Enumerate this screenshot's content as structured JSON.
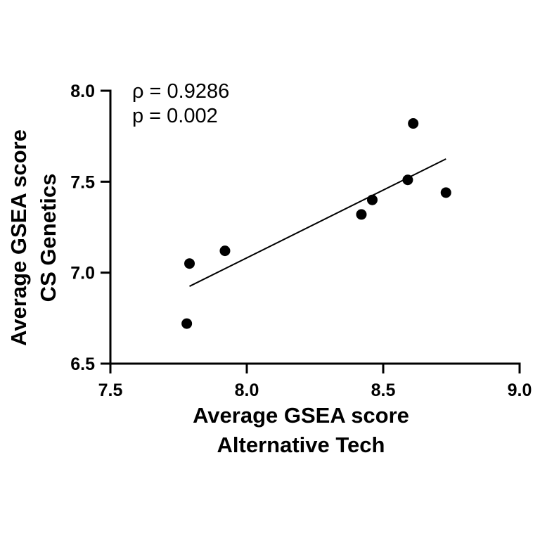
{
  "chart_data": {
    "type": "scatter",
    "title": "",
    "xlabel": [
      "Average GSEA score",
      "Alternative Tech"
    ],
    "ylabel": [
      "Average GSEA score",
      "CS Genetics"
    ],
    "xlim": [
      7.5,
      9.0
    ],
    "ylim": [
      6.5,
      8.0
    ],
    "x_ticks": [
      7.5,
      8.0,
      8.5,
      9.0
    ],
    "x_tick_labels": [
      "7.5",
      "8.0",
      "8.5",
      "9.0"
    ],
    "y_ticks": [
      6.5,
      7.0,
      7.5,
      8.0
    ],
    "y_tick_labels": [
      "6.5",
      "7.0",
      "7.5",
      "8.0"
    ],
    "grid": false,
    "legend": "none",
    "annotations": [
      "ρ = 0.9286",
      "p = 0.002"
    ],
    "points": [
      {
        "x": 7.78,
        "y": 6.72
      },
      {
        "x": 7.79,
        "y": 7.05
      },
      {
        "x": 7.92,
        "y": 7.12
      },
      {
        "x": 8.42,
        "y": 7.32
      },
      {
        "x": 8.46,
        "y": 7.4
      },
      {
        "x": 8.59,
        "y": 7.51
      },
      {
        "x": 8.61,
        "y": 7.82
      },
      {
        "x": 8.73,
        "y": 7.44
      }
    ],
    "fit_line": {
      "x": [
        7.79,
        8.73
      ],
      "y": [
        6.925,
        7.625
      ]
    },
    "colors": {
      "points": "#000000",
      "line": "#000000",
      "axes": "#000000"
    }
  }
}
